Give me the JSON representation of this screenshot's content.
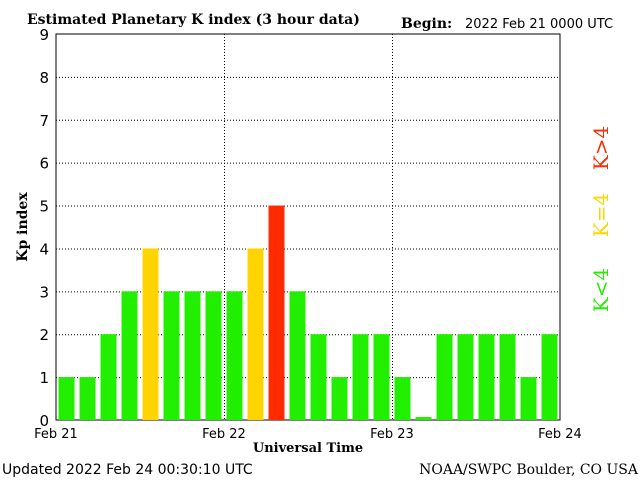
{
  "chart_data": {
    "type": "bar",
    "title": "Estimated Planetary K index (3 hour data)",
    "begin_label": "Begin:",
    "begin_value": "2022 Feb 21 0000 UTC",
    "ylabel": "Kp index",
    "xlabel": "Universal Time",
    "ylim": [
      0,
      9
    ],
    "yticks": [
      "0",
      "1",
      "2",
      "3",
      "4",
      "5",
      "6",
      "7",
      "8",
      "9"
    ],
    "xticks": [
      "Feb 21",
      "Feb 22",
      "Feb 23",
      "Feb 24"
    ],
    "grid": true,
    "values": [
      1,
      1,
      2,
      3,
      4,
      3,
      3,
      3,
      3,
      4,
      5,
      3,
      2,
      1,
      2,
      2,
      1,
      0.07,
      2,
      2,
      2,
      2,
      1,
      2
    ],
    "colors": {
      "below4": "#22ee00",
      "equal4": "#ffd400",
      "above4": "#ff2a00"
    },
    "legend": {
      "below4": "K<4",
      "equal4": "K=4",
      "above4": "K>4"
    }
  },
  "footer": {
    "updated": "Updated 2022 Feb 24 00:30:10 UTC",
    "credit": "NOAA/SWPC Boulder, CO USA"
  }
}
